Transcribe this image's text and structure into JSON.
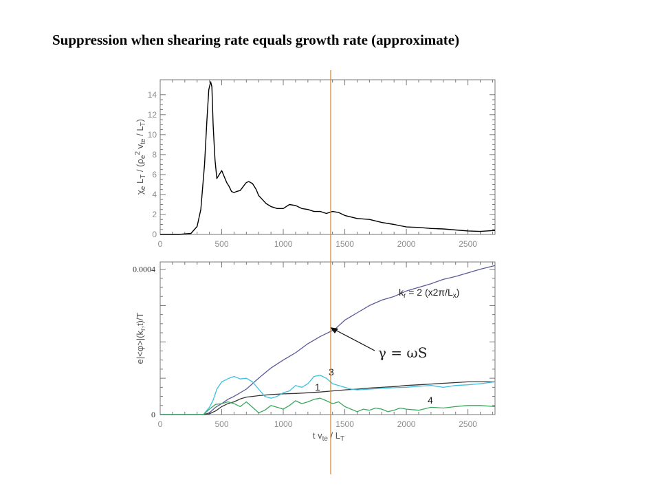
{
  "slide": {
    "title": "Suppression when shearing rate equals growth rate (approximate)"
  },
  "colors": {
    "top_line": "#000000",
    "kr2": "#5a5a9a",
    "kr1": "#333333",
    "kr3": "#3cc0e0",
    "kr4": "#3aa85a",
    "marker": "#d4842a"
  },
  "chart_data": [
    {
      "type": "line",
      "ylabel": "χe LT / (ρe2 vte / LT)",
      "xlim": [
        0,
        2720
      ],
      "ylim": [
        0,
        15.5
      ],
      "xticks": [
        "0",
        "500",
        "1000",
        "1500",
        "2000",
        "2500"
      ],
      "yticks": [
        "0",
        "2",
        "4",
        "6",
        "8",
        "10",
        "12",
        "14"
      ],
      "series": [
        {
          "x": [
            0,
            150,
            250,
            300,
            330,
            360,
            380,
            395,
            410,
            420,
            430,
            445,
            460,
            480,
            500,
            520,
            540,
            560,
            580,
            600,
            620,
            650,
            680,
            700,
            720,
            750,
            780,
            800,
            830,
            860,
            900,
            950,
            1000,
            1050,
            1100,
            1150,
            1200,
            1250,
            1300,
            1350,
            1400,
            1450,
            1500,
            1600,
            1700,
            1800,
            1900,
            2000,
            2100,
            2200,
            2300,
            2400,
            2500,
            2600,
            2720
          ],
          "y": [
            0,
            0,
            0.1,
            0.8,
            2.5,
            7,
            11.5,
            14.5,
            15.3,
            14.8,
            11,
            7.5,
            5.6,
            6,
            6.4,
            5.8,
            5.2,
            4.8,
            4.3,
            4.2,
            4.3,
            4.4,
            4.9,
            5.2,
            5.3,
            5.1,
            4.5,
            3.9,
            3.5,
            3.1,
            2.8,
            2.6,
            2.6,
            3,
            2.9,
            2.6,
            2.5,
            2.3,
            2.3,
            2.1,
            2.3,
            2.2,
            1.9,
            1.6,
            1.5,
            1.2,
            1,
            0.75,
            0.7,
            0.6,
            0.55,
            0.45,
            0.35,
            0.3,
            0.4
          ]
        }
      ]
    },
    {
      "type": "line",
      "xlabel": "t vte / LT",
      "ylabel": "e|<φ>|(kr,t)/T",
      "xlim": [
        0,
        2720
      ],
      "ylim": [
        0,
        0.00042
      ],
      "xticks": [
        "0",
        "500",
        "1000",
        "1500",
        "2000",
        "2500"
      ],
      "yticks": [
        "0",
        "0.0004"
      ],
      "annotations": {
        "gamma": "γ = ωS",
        "kr2": "kr = 2 (x2π/Lx)",
        "l1": "1",
        "l3": "3",
        "l4": "4"
      },
      "series": [
        {
          "name": "2",
          "x": [
            0,
            350,
            400,
            450,
            500,
            550,
            600,
            700,
            800,
            900,
            1000,
            1100,
            1200,
            1300,
            1380,
            1420,
            1500,
            1600,
            1700,
            1800,
            1900,
            2000,
            2100,
            2200,
            2300,
            2400,
            2500,
            2600,
            2720
          ],
          "y": [
            0,
            0,
            5e-06,
            2e-05,
            3e-05,
            4.2e-05,
            5e-05,
            7e-05,
            0.0001,
            0.000128,
            0.00015,
            0.00017,
            0.000195,
            0.000215,
            0.000228,
            0.000235,
            0.00026,
            0.00028,
            0.0003,
            0.000315,
            0.000325,
            0.00034,
            0.00035,
            0.00036,
            0.000372,
            0.00038,
            0.00039,
            0.0004,
            0.00041
          ]
        },
        {
          "name": "1",
          "x": [
            0,
            350,
            400,
            450,
            500,
            550,
            600,
            650,
            700,
            750,
            800,
            900,
            1000,
            1100,
            1200,
            1300,
            1400,
            1500,
            1600,
            1700,
            1800,
            1900,
            2000,
            2100,
            2200,
            2300,
            2400,
            2500,
            2600,
            2720
          ],
          "y": [
            0,
            0,
            2e-06,
            1e-05,
            2.2e-05,
            3e-05,
            3.5e-05,
            4.3e-05,
            4.8e-05,
            5e-05,
            5.2e-05,
            5.5e-05,
            5.7e-05,
            5.8e-05,
            6e-05,
            6.2e-05,
            6.5e-05,
            6.8e-05,
            7e-05,
            7.3e-05,
            7.5e-05,
            7.7e-05,
            8e-05,
            8.2e-05,
            8.4e-05,
            8.6e-05,
            8.8e-05,
            9e-05,
            9e-05,
            9e-05
          ]
        },
        {
          "name": "3",
          "x": [
            0,
            350,
            400,
            430,
            460,
            500,
            560,
            600,
            650,
            700,
            750,
            800,
            850,
            900,
            950,
            1000,
            1050,
            1100,
            1150,
            1200,
            1250,
            1300,
            1350,
            1400,
            1450,
            1500,
            1550,
            1600,
            1700,
            1800,
            1900,
            2000,
            2100,
            2200,
            2300,
            2400,
            2500,
            2600,
            2720
          ],
          "y": [
            0,
            0,
            2e-05,
            4e-05,
            7e-05,
            9e-05,
            0.0001,
            0.000105,
            9.8e-05,
            0.0001,
            9e-05,
            7e-05,
            5e-05,
            4.5e-05,
            5e-05,
            6e-05,
            6.5e-05,
            8e-05,
            7.5e-05,
            8.5e-05,
            0.000105,
            0.000108,
            0.0001,
            8.5e-05,
            8e-05,
            7.5e-05,
            7e-05,
            6.8e-05,
            7e-05,
            7.2e-05,
            7.4e-05,
            7.5e-05,
            7.8e-05,
            8e-05,
            7.5e-05,
            8e-05,
            8.2e-05,
            8.5e-05,
            9e-05
          ]
        },
        {
          "name": "4",
          "x": [
            0,
            350,
            400,
            450,
            500,
            550,
            600,
            650,
            700,
            750,
            800,
            850,
            900,
            950,
            1000,
            1050,
            1100,
            1150,
            1200,
            1250,
            1300,
            1350,
            1400,
            1450,
            1500,
            1550,
            1600,
            1650,
            1700,
            1750,
            1800,
            1850,
            1900,
            1950,
            2000,
            2100,
            2200,
            2300,
            2400,
            2500,
            2600,
            2720
          ],
          "y": [
            0,
            0,
            1.5e-05,
            2.8e-05,
            3e-05,
            3.5e-05,
            3e-05,
            2.2e-05,
            3.5e-05,
            2e-05,
            5e-06,
            1.2e-05,
            2.5e-05,
            2e-05,
            1.5e-05,
            2.5e-05,
            3.8e-05,
            3e-05,
            3.5e-05,
            4.2e-05,
            4.5e-05,
            3.8e-05,
            3e-05,
            3.5e-05,
            2.2e-05,
            1.5e-05,
            8e-06,
            1.5e-05,
            1.2e-05,
            1.8e-05,
            1.5e-05,
            8e-06,
            1.2e-05,
            1.8e-05,
            1.5e-05,
            1.2e-05,
            2e-05,
            1.8e-05,
            2.2e-05,
            2.5e-05,
            2.5e-05,
            2.2e-05
          ]
        }
      ]
    }
  ]
}
